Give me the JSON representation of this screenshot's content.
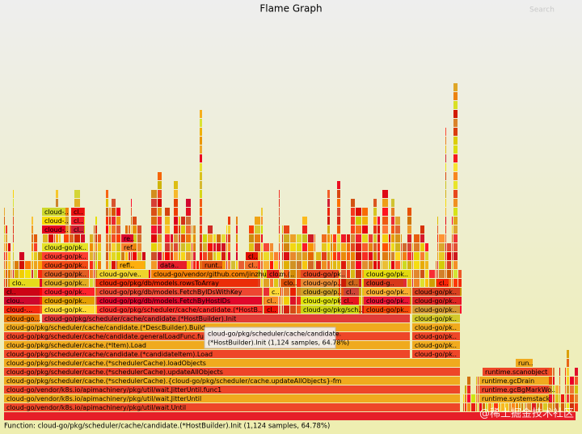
{
  "title": "Flame Graph",
  "search": "Search",
  "frames": [
    "cloud-go/vendor/k8s.io/apimachinery/pkg/util/wait.Until",
    "cloud-go/vendor/k8s.io/apimachinery/pkg/util/wait.JitterUntil",
    "runtime.systemstack",
    "cloud-go/vendor/k8s.io/apimachinery/pkg/util/wait.JitterUntil.func1",
    "runtime.gcBgMarkWo..",
    "cloud-go/pkg/scheduler/cache.(*schedulerCache).{cloud-go/pkg/scheduler/cache.updateAllObjects}-fm",
    "runtime.gcDrain",
    "cloud-go/pkg/scheduler/cache.(*schedulerCache).updateAllObjects",
    "runtime.scanobject",
    "cloud-go/pkg/scheduler/cache.(*schedulerCache).loadObjects",
    "run..",
    "cloud-go/pkg/scheduler/cache/candidate.(*candidateItem).Load",
    "cloud-go/pk..",
    "cloud-go/pkg/scheduler/cache.(*Item).Load",
    "cloud-go/pk..",
    "cloud-go/pkg/scheduler/cache/candidate.generalLoadFunc.func1",
    "cloud-go/pk..",
    "cloud-go/pkg/scheduler/cache/candidate.(*DescBuilder).Build",
    "cloud-go/pk..",
    "cloud-go...",
    "cloud-go/pkg/scheduler/cache/candidate.(*HostBuilder).Init",
    "cloud-go/pk..",
    "cloud-...",
    "cloud-go/pk..",
    "cloud-go/pkg/scheduler/cache/candidate.(*HostB..",
    "cl..",
    "cloud-go/pkg/sch..",
    "cloud-go/pk..",
    "cloud-go/pk..",
    "clou..",
    "cloud-go/pk..",
    "cloud-go/pkg/db/models.FetchByHostIDs",
    "cl..",
    "cloud-go/pk..",
    "cl..",
    "cloud-go/pk..",
    "cloud-go/pk..",
    "cl..",
    "cloud-go/pk..",
    "cloud-go/pkg/db/models.FetchByIDsWithKey",
    "c..",
    "cloud-go/p..",
    "cl..",
    "cloud-go/pk..",
    "cloud-go/pk..",
    "clo..",
    "cloud-go/pk..",
    "cloud-go/pkg/db/models.rowsToArray",
    "clo..",
    "cloud-go/p..",
    "cl..",
    "cloud-g..",
    "cl..",
    "cloud-go/pk..",
    "cloud-go/ve..",
    "cloud-go/vendor/github.com/jinzhu/gorm.(..",
    "clo..",
    "cloud-go/pk..",
    "cloud-go/pk..",
    "cloud-go/pk..",
    "refl..",
    "data..",
    "runt..",
    "cl..",
    "cloud-go/pk..",
    "cl..",
    "cloud-go/pk..",
    "ref..",
    "re..",
    "cloud-..",
    "cl..",
    "cloud-..",
    "cl..",
    "cloud-..",
    "cl.."
  ],
  "tooltip": {
    "line1": "cloud-go/pkg/scheduler/cache/candidate.",
    "line2": "(*HostBuilder).Init (1,124 samples, 64.78%)"
  },
  "status": "Function: cloud-go/pkg/scheduler/cache/candidate.(*HostBuilder).Init (1,124 samples, 64.78%)",
  "watermark": "@稀土掘金技术社区"
}
